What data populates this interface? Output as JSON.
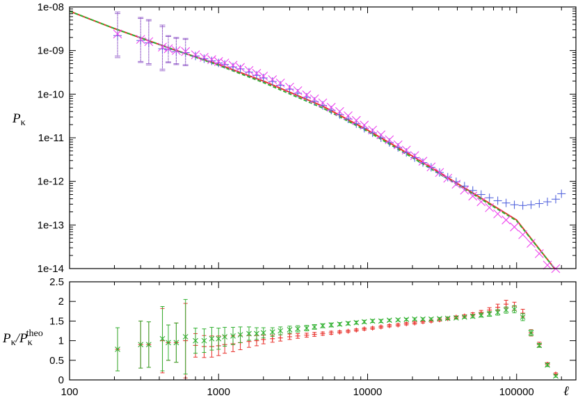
{
  "chart_data": [
    {
      "type": "line",
      "panel": "top",
      "ylabel": "Pκ",
      "xscale": "log",
      "yscale": "log",
      "xlim": [
        100,
        250000
      ],
      "ylim": [
        1e-14,
        1e-08
      ],
      "xticks": [
        100,
        1000,
        10000,
        100000
      ],
      "xtick_labels": [
        "100",
        "1000",
        "10000",
        "100000"
      ],
      "yticks": [
        1e-14,
        1e-13,
        1e-12,
        1e-11,
        1e-10,
        1e-09,
        1e-08
      ],
      "ytick_labels": [
        "1e-14",
        "1e-13",
        "1e-12",
        "1e-11",
        "1e-10",
        "1e-09",
        "1e-08"
      ],
      "grid": false,
      "colors": {
        "red": "#e8302a",
        "green": "#2fb02f",
        "blue": "#5566dd",
        "magenta": "#ee44ee",
        "purple": "#9966cc"
      },
      "series": [
        {
          "style": "line",
          "color": "#e8302a",
          "x": [
            100,
            200,
            500,
            1000,
            2000,
            5000,
            10000,
            20000,
            50000,
            100000,
            180000
          ],
          "y": [
            8e-09,
            3.2e-09,
            1.05e-09,
            4.8e-10,
            2e-10,
            5.3e-11,
            1.5e-11,
            3.8e-12,
            5.6e-13,
            1.3e-13,
            1e-14
          ]
        },
        {
          "style": "dashed",
          "color": "#2fb02f",
          "x": [
            100,
            200,
            500,
            1000,
            2000,
            5000,
            10000,
            20000,
            50000,
            100000,
            180000
          ],
          "y": [
            8e-09,
            3.2e-09,
            1.05e-09,
            4.6e-10,
            1.85e-10,
            4.8e-11,
            1.4e-11,
            3.5e-12,
            5.3e-13,
            1.25e-13,
            1e-14
          ]
        },
        {
          "style": "markers-plus",
          "color": "#5566dd",
          "x": [
            210,
            300,
            340,
            420,
            460,
            520,
            600,
            700,
            800,
            900,
            1000,
            1100,
            1250,
            1400,
            1600,
            1800,
            2000,
            2300,
            2600,
            3000,
            3400,
            3900,
            4400,
            5000,
            5700,
            6500,
            7400,
            8400,
            9500,
            10800,
            12300,
            14000,
            16000,
            18200,
            20700,
            23500,
            26700,
            30400,
            34500,
            39300,
            44700,
            50800,
            57800,
            65700,
            74700,
            85000,
            96600,
            110000,
            125000,
            142000,
            161000,
            183000,
            200000
          ],
          "y": [
            2.2e-09,
            1.7e-09,
            1.5e-09,
            1.1e-09,
            1.05e-09,
            9.5e-10,
            9e-10,
            7.5e-10,
            6.5e-10,
            5.8e-10,
            5.2e-10,
            4.8e-10,
            4.2e-10,
            3.8e-10,
            3.2e-10,
            2.7e-10,
            2.35e-10,
            1.95e-10,
            1.6e-10,
            1.3e-10,
            1.05e-10,
            8.5e-11,
            6.8e-11,
            5.5e-11,
            4.3e-11,
            3.4e-11,
            2.7e-11,
            2.1e-11,
            1.65e-11,
            1.3e-11,
            1e-11,
            7.8e-12,
            6e-12,
            4.6e-12,
            3.5e-12,
            2.7e-12,
            2.1e-12,
            1.6e-12,
            1.25e-12,
            9.8e-13,
            7.8e-13,
            6.2e-13,
            5e-13,
            4.2e-13,
            3.6e-13,
            3.2e-13,
            2.9e-13,
            2.8e-13,
            2.9e-13,
            3.1e-13,
            3.4e-13,
            3.9e-13,
            5.2e-13
          ]
        },
        {
          "style": "markers-x",
          "color": "#ee44ee",
          "x": [
            210,
            300,
            340,
            420,
            460,
            520,
            600,
            700,
            800,
            900,
            1000,
            1100,
            1250,
            1400,
            1600,
            1800,
            2000,
            2300,
            2600,
            3000,
            3400,
            3900,
            4400,
            5000,
            5700,
            6500,
            7400,
            8400,
            9500,
            10800,
            12300,
            14000,
            16000,
            18200,
            20700,
            23500,
            26700,
            30400,
            34500,
            39300,
            44700,
            50800,
            57800,
            65700,
            74700,
            85000,
            96600,
            110000,
            125000,
            142000,
            161000,
            183000
          ],
          "y": [
            2.4e-09,
            1.8e-09,
            1.6e-09,
            1.2e-09,
            1.1e-09,
            1e-09,
            9.5e-10,
            8e-10,
            7e-10,
            6.2e-10,
            5.6e-10,
            5.2e-10,
            4.6e-10,
            4.1e-10,
            3.5e-10,
            3e-10,
            2.6e-10,
            2.15e-10,
            1.8e-10,
            1.45e-10,
            1.2e-10,
            9.6e-11,
            7.8e-11,
            6.3e-11,
            5e-11,
            4e-11,
            3.2e-11,
            2.5e-11,
            1.95e-11,
            1.5e-11,
            1.17e-11,
            9e-12,
            6.9e-12,
            5.2e-12,
            3.9e-12,
            2.9e-12,
            2.15e-12,
            1.6e-12,
            1.18e-12,
            8.6e-13,
            6.3e-13,
            4.6e-13,
            3.4e-13,
            2.5e-13,
            1.8e-13,
            1.3e-13,
            9e-14,
            6e-14,
            3.8e-14,
            2.2e-14,
            1.2e-14,
            9e-15
          ]
        }
      ]
    },
    {
      "type": "scatter",
      "panel": "bottom",
      "ylabel": "Pκ/Pκtheo",
      "xlabel": "ℓ",
      "xscale": "log",
      "xlim": [
        100,
        250000
      ],
      "ylim": [
        0,
        2.5
      ],
      "xticks": [
        100,
        1000,
        10000,
        100000
      ],
      "xtick_labels": [
        "100",
        "1000",
        "10000",
        "100000"
      ],
      "yticks": [
        0,
        0.5,
        1,
        1.5,
        2,
        2.5
      ],
      "ytick_labels": [
        "0",
        "0.5",
        "1",
        "1.5",
        "2",
        "2.5"
      ],
      "grid": false,
      "series": [
        {
          "style": "markers-plus-errorbar",
          "color": "#e8302a",
          "x": [
            210,
            300,
            340,
            420,
            460,
            520,
            600,
            700,
            800,
            900,
            1000,
            1100,
            1250,
            1400,
            1600,
            1800,
            2000,
            2300,
            2600,
            3000,
            3400,
            3900,
            4400,
            5000,
            5700,
            6500,
            7400,
            8400,
            9500,
            10800,
            12300,
            14000,
            16000,
            18200,
            20700,
            23500,
            26700,
            30400,
            34500,
            39300,
            44700,
            50800,
            57800,
            65700,
            74700,
            85000,
            96600,
            110000,
            125000,
            142000,
            161000,
            183000
          ],
          "y": [
            0.78,
            0.9,
            0.9,
            1.0,
            0.95,
            0.95,
            1.0,
            0.88,
            0.85,
            0.85,
            0.87,
            0.9,
            0.92,
            0.95,
            0.98,
            1.0,
            1.03,
            1.05,
            1.07,
            1.1,
            1.12,
            1.14,
            1.16,
            1.18,
            1.2,
            1.22,
            1.24,
            1.27,
            1.3,
            1.32,
            1.35,
            1.38,
            1.4,
            1.43,
            1.45,
            1.48,
            1.5,
            1.53,
            1.56,
            1.6,
            1.63,
            1.67,
            1.72,
            1.78,
            1.85,
            1.93,
            1.88,
            1.7,
            1.2,
            0.9,
            0.4,
            0.15
          ],
          "err": [
            0.55,
            0.6,
            0.58,
            0.82,
            0.45,
            0.5,
            0.95,
            0.3,
            0.28,
            0.27,
            0.25,
            0.22,
            0.2,
            0.18,
            0.15,
            0.13,
            0.11,
            0.09,
            0.08,
            0.07,
            0.06,
            0.05,
            0.05,
            0.04,
            0.04,
            0.03,
            0.03,
            0.03,
            0.03,
            0.03,
            0.03,
            0.03,
            0.03,
            0.03,
            0.03,
            0.03,
            0.03,
            0.03,
            0.03,
            0.03,
            0.03,
            0.04,
            0.05,
            0.06,
            0.08,
            0.1,
            0.1,
            0.1,
            0.08,
            0.06,
            0.04,
            0.03
          ]
        },
        {
          "style": "markers-x-errorbar",
          "color": "#2fb02f",
          "x": [
            210,
            300,
            340,
            420,
            460,
            520,
            600,
            700,
            800,
            900,
            1000,
            1100,
            1250,
            1400,
            1600,
            1800,
            2000,
            2300,
            2600,
            3000,
            3400,
            3900,
            4400,
            5000,
            5700,
            6500,
            7400,
            8400,
            9500,
            10800,
            12300,
            14000,
            16000,
            18200,
            20700,
            23500,
            26700,
            30400,
            34500,
            39300,
            44700,
            50800,
            57800,
            65700,
            74700,
            85000,
            96600,
            110000,
            125000,
            142000,
            161000,
            183000
          ],
          "y": [
            0.78,
            0.9,
            0.9,
            1.05,
            0.95,
            0.95,
            1.1,
            1.0,
            1.0,
            1.05,
            1.05,
            1.1,
            1.12,
            1.15,
            1.18,
            1.18,
            1.2,
            1.22,
            1.25,
            1.28,
            1.3,
            1.32,
            1.35,
            1.38,
            1.4,
            1.42,
            1.44,
            1.46,
            1.48,
            1.5,
            1.5,
            1.52,
            1.53,
            1.54,
            1.55,
            1.55,
            1.55,
            1.56,
            1.57,
            1.58,
            1.6,
            1.62,
            1.65,
            1.68,
            1.72,
            1.78,
            1.8,
            1.6,
            1.2,
            0.88,
            0.38,
            0.1
          ],
          "err": [
            0.55,
            0.6,
            0.58,
            0.82,
            0.45,
            0.5,
            0.95,
            0.32,
            0.3,
            0.29,
            0.27,
            0.24,
            0.22,
            0.2,
            0.17,
            0.15,
            0.13,
            0.11,
            0.1,
            0.09,
            0.08,
            0.07,
            0.06,
            0.05,
            0.05,
            0.04,
            0.04,
            0.04,
            0.04,
            0.04,
            0.04,
            0.03,
            0.03,
            0.03,
            0.03,
            0.03,
            0.03,
            0.03,
            0.03,
            0.03,
            0.03,
            0.04,
            0.05,
            0.06,
            0.07,
            0.08,
            0.09,
            0.09,
            0.07,
            0.05,
            0.04,
            0.03
          ]
        }
      ]
    }
  ]
}
